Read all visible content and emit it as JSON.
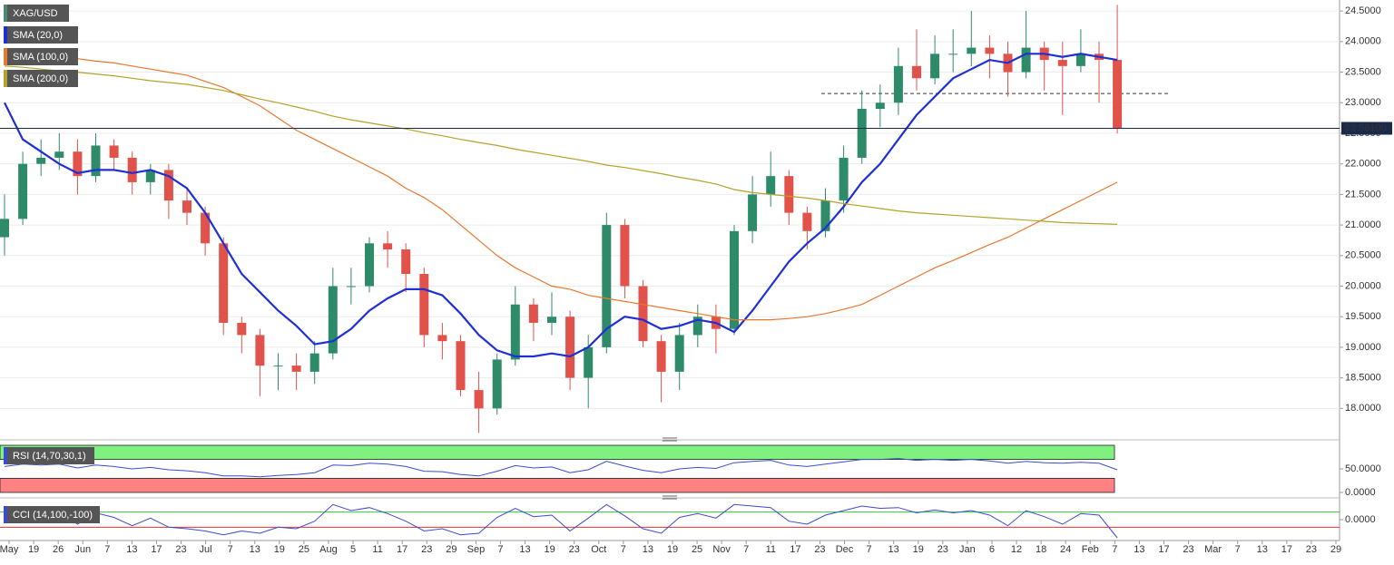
{
  "chart_data": [
    {
      "type": "candlestick",
      "title": "XAG/USD",
      "up_color": "#2e8b6a",
      "down_color": "#e0524a",
      "open": [
        20.8,
        21.1,
        22.0,
        22.1,
        22.2,
        21.8,
        22.3,
        22.1,
        21.7,
        21.9,
        21.4,
        21.2,
        20.7,
        19.4,
        19.2,
        18.7,
        18.7,
        18.6,
        18.9,
        20.0,
        20.0,
        20.7,
        20.6,
        20.2,
        19.2,
        19.1,
        18.3,
        18.0,
        18.8,
        19.7,
        19.4,
        19.5,
        18.5,
        19.0,
        21.0,
        20.0,
        19.1,
        18.6,
        19.2,
        19.5,
        19.3,
        20.9,
        21.5,
        21.8,
        21.2,
        20.9,
        21.4,
        22.1,
        22.9,
        23.0,
        23.6,
        23.4,
        23.8,
        23.8,
        23.9,
        23.8,
        23.5,
        23.9,
        23.7,
        23.6,
        23.8,
        23.7
      ],
      "high": [
        21.5,
        22.2,
        22.4,
        22.5,
        22.4,
        22.5,
        22.4,
        22.2,
        22.0,
        22.0,
        21.6,
        21.3,
        20.8,
        19.5,
        19.3,
        18.9,
        18.9,
        19.1,
        20.3,
        20.3,
        20.8,
        20.9,
        20.7,
        20.3,
        19.4,
        19.2,
        18.6,
        18.9,
        20.0,
        19.8,
        19.9,
        19.6,
        19.2,
        21.2,
        21.1,
        20.1,
        19.2,
        19.4,
        19.7,
        19.7,
        21.0,
        21.8,
        22.2,
        21.9,
        21.3,
        21.6,
        22.3,
        23.2,
        23.3,
        23.9,
        24.2,
        24.1,
        24.2,
        24.5,
        24.1,
        24.0,
        24.5,
        24.0,
        24.0,
        24.2,
        24.0,
        24.6
      ],
      "low": [
        20.5,
        21.0,
        21.8,
        21.9,
        21.5,
        21.7,
        21.9,
        21.5,
        21.5,
        21.1,
        21.0,
        20.5,
        19.2,
        18.9,
        18.2,
        18.3,
        18.3,
        18.4,
        18.8,
        19.7,
        19.9,
        20.3,
        19.9,
        19.0,
        18.8,
        18.2,
        17.6,
        17.9,
        18.7,
        19.1,
        19.2,
        18.3,
        18.0,
        18.9,
        19.8,
        19.0,
        18.1,
        18.3,
        19.0,
        18.9,
        19.2,
        20.7,
        21.3,
        21.0,
        20.6,
        20.8,
        21.2,
        22.0,
        22.6,
        22.8,
        23.2,
        23.3,
        23.5,
        23.6,
        23.4,
        23.1,
        23.4,
        23.2,
        22.8,
        23.5,
        23.0,
        22.5
      ],
      "close": [
        21.1,
        22.0,
        22.1,
        22.2,
        21.8,
        22.3,
        22.1,
        21.7,
        21.9,
        21.4,
        21.2,
        20.7,
        19.4,
        19.2,
        18.7,
        18.7,
        18.6,
        18.9,
        20.0,
        20.0,
        20.7,
        20.6,
        20.2,
        19.2,
        19.1,
        18.3,
        18.0,
        18.8,
        19.7,
        19.4,
        19.5,
        18.5,
        19.0,
        21.0,
        20.0,
        19.1,
        18.6,
        19.2,
        19.5,
        19.3,
        20.9,
        21.5,
        21.8,
        21.2,
        20.9,
        21.4,
        22.1,
        22.9,
        23.0,
        23.6,
        23.4,
        23.8,
        23.8,
        23.9,
        23.8,
        23.5,
        23.9,
        23.7,
        23.6,
        23.8,
        23.7,
        22.58
      ],
      "series": [
        {
          "name": "SMA (20,0)",
          "color": "#1f2fd6",
          "values": [
            23.0,
            22.4,
            22.2,
            22.0,
            21.85,
            21.9,
            21.9,
            21.85,
            21.9,
            21.8,
            21.6,
            21.2,
            20.7,
            20.2,
            19.9,
            19.6,
            19.35,
            19.05,
            19.1,
            19.3,
            19.6,
            19.8,
            19.95,
            19.95,
            19.85,
            19.55,
            19.2,
            18.95,
            18.85,
            18.85,
            18.9,
            18.85,
            19.0,
            19.3,
            19.5,
            19.45,
            19.3,
            19.35,
            19.45,
            19.4,
            19.25,
            19.6,
            20.0,
            20.4,
            20.7,
            20.95,
            21.3,
            21.7,
            22.0,
            22.4,
            22.8,
            23.1,
            23.4,
            23.55,
            23.7,
            23.65,
            23.8,
            23.8,
            23.75,
            23.8,
            23.75,
            23.7
          ]
        },
        {
          "name": "SMA (100,0)",
          "color": "#e8772e",
          "values": [
            23.85,
            23.82,
            23.78,
            23.75,
            23.72,
            23.68,
            23.65,
            23.6,
            23.55,
            23.5,
            23.45,
            23.35,
            23.25,
            23.1,
            22.95,
            22.75,
            22.55,
            22.4,
            22.25,
            22.1,
            21.95,
            21.8,
            21.6,
            21.45,
            21.25,
            21.0,
            20.75,
            20.5,
            20.3,
            20.15,
            20.0,
            19.95,
            19.85,
            19.8,
            19.75,
            19.7,
            19.65,
            19.6,
            19.55,
            19.5,
            19.45,
            19.45,
            19.45,
            19.47,
            19.5,
            19.55,
            19.62,
            19.7,
            19.85,
            20.0,
            20.15,
            20.3,
            20.42,
            20.55,
            20.68,
            20.8,
            20.95,
            21.1,
            21.25,
            21.4,
            21.55,
            21.7
          ]
        },
        {
          "name": "SMA (200,0)",
          "color": "#b5a22c",
          "values": [
            23.6,
            23.58,
            23.55,
            23.52,
            23.5,
            23.47,
            23.44,
            23.4,
            23.36,
            23.33,
            23.3,
            23.25,
            23.2,
            23.13,
            23.06,
            23.0,
            22.93,
            22.86,
            22.78,
            22.72,
            22.67,
            22.62,
            22.57,
            22.51,
            22.46,
            22.4,
            22.35,
            22.3,
            22.24,
            22.19,
            22.14,
            22.09,
            22.04,
            21.98,
            21.94,
            21.89,
            21.84,
            21.78,
            21.73,
            21.67,
            21.58,
            21.53,
            21.5,
            21.47,
            21.44,
            21.4,
            21.35,
            21.31,
            21.27,
            21.23,
            21.2,
            21.18,
            21.16,
            21.14,
            21.12,
            21.1,
            21.08,
            21.06,
            21.04,
            21.03,
            21.02,
            21.01
          ]
        }
      ],
      "ylim": [
        17.56,
        24.68
      ],
      "yticks": [
        {
          "value": 18.0,
          "label": "18.0000"
        },
        {
          "value": 18.5,
          "label": "18.5000"
        },
        {
          "value": 19.0,
          "label": "19.0000"
        },
        {
          "value": 19.5,
          "label": "19.5000"
        },
        {
          "value": 20.0,
          "label": "20.0000"
        },
        {
          "value": 20.5,
          "label": "20.5000"
        },
        {
          "value": 21.0,
          "label": "21.0000"
        },
        {
          "value": 21.5,
          "label": "21.5000"
        },
        {
          "value": 22.0,
          "label": "22.0000"
        },
        {
          "value": 22.5,
          "label": "22.5000"
        },
        {
          "value": 23.0,
          "label": "23.0000"
        },
        {
          "value": 23.5,
          "label": "23.5000"
        },
        {
          "value": 24.0,
          "label": "24.0000"
        },
        {
          "value": 24.5,
          "label": "24.5000"
        }
      ],
      "grid": true,
      "last_price": {
        "value": 22.581,
        "label": "22.58100"
      },
      "level": 23.15,
      "x_labels": [
        "May",
        "19",
        "26",
        "Jun",
        "7",
        "13",
        "17",
        "23",
        "Jul",
        "7",
        "13",
        "19",
        "25",
        "Aug",
        "5",
        "11",
        "17",
        "23",
        "29",
        "Sep",
        "7",
        "13",
        "19",
        "23",
        "Oct",
        "7",
        "13",
        "19",
        "25",
        "Nov",
        "7",
        "11",
        "17",
        "23",
        "Dec",
        "7",
        "13",
        "19",
        "23",
        "Jan",
        "6",
        "12",
        "18",
        "24",
        "Feb",
        "7",
        "13",
        "17",
        "23",
        "Mar",
        "7",
        "13",
        "17",
        "23",
        "29"
      ]
    },
    {
      "type": "line",
      "title": "RSI (14,70,30,1)",
      "color": "#3a4bd0",
      "values": [
        55,
        60,
        58,
        60,
        52,
        58,
        55,
        50,
        53,
        48,
        46,
        42,
        35,
        35,
        33,
        36,
        38,
        42,
        58,
        57,
        62,
        60,
        55,
        45,
        44,
        38,
        35,
        45,
        57,
        52,
        54,
        42,
        48,
        66,
        56,
        47,
        42,
        50,
        53,
        51,
        63,
        66,
        68,
        58,
        55,
        60,
        65,
        70,
        70,
        72,
        68,
        70,
        68,
        70,
        67,
        62,
        66,
        63,
        62,
        64,
        62,
        48
      ],
      "ylim": [
        -7.7,
        105.8
      ],
      "yticks": [
        {
          "value": 50,
          "label": "50.0000"
        },
        {
          "value": 0,
          "label": "0.0000"
        }
      ],
      "bands": [
        {
          "from": 70,
          "to": 100,
          "color": "#80f080"
        },
        {
          "from": 0,
          "to": 30,
          "color": "#ff8282"
        }
      ]
    },
    {
      "type": "line",
      "title": "CCI (14,100,-100)",
      "color": "#3a4bd0",
      "values": [
        80,
        120,
        60,
        100,
        -60,
        90,
        30,
        -80,
        20,
        -100,
        -120,
        -150,
        -200,
        -150,
        -180,
        -100,
        -120,
        -20,
        200,
        120,
        160,
        80,
        -20,
        -150,
        -120,
        -200,
        -180,
        30,
        150,
        40,
        60,
        -150,
        20,
        200,
        50,
        -120,
        -180,
        30,
        80,
        20,
        200,
        180,
        160,
        -20,
        -60,
        60,
        120,
        180,
        150,
        160,
        90,
        130,
        90,
        120,
        60,
        -80,
        120,
        40,
        -60,
        80,
        60,
        -240
      ],
      "ylim": [
        -240,
        240
      ],
      "yticks": [
        {
          "value": 0,
          "label": "0.0000"
        }
      ],
      "levels": [
        {
          "value": 100,
          "color": "#3cc43c"
        },
        {
          "value": -100,
          "color": "#e33333"
        }
      ]
    }
  ]
}
